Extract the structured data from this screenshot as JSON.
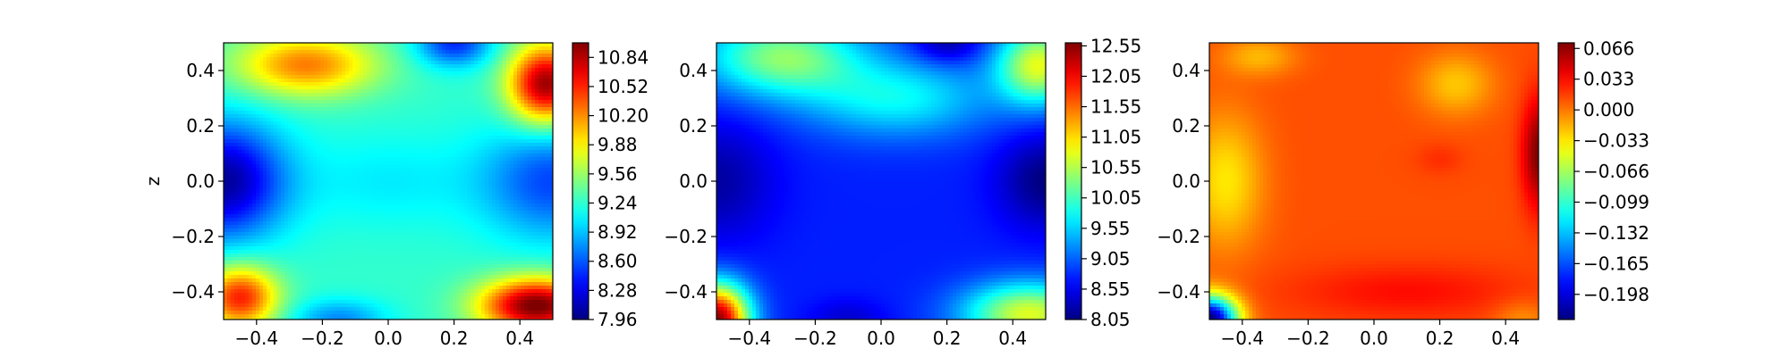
{
  "chart_data": [
    {
      "type": "heatmap",
      "colormap": "jet",
      "xlabel": "",
      "ylabel": "z",
      "xlim": [
        -0.5,
        0.5
      ],
      "ylim": [
        -0.5,
        0.5
      ],
      "xticks": [
        "−0.4",
        "−0.2",
        "0.0",
        "0.2",
        "0.4"
      ],
      "yticks": [
        "−0.4",
        "−0.2",
        "0.0",
        "0.2",
        "0.4"
      ],
      "colorbar": {
        "min": 7.96,
        "max": 11.0,
        "ticks": [
          {
            "value": 7.96,
            "label": "7.96"
          },
          {
            "value": 8.28,
            "label": "8.28"
          },
          {
            "value": 8.6,
            "label": "8.60"
          },
          {
            "value": 8.92,
            "label": "8.92"
          },
          {
            "value": 9.24,
            "label": "9.24"
          },
          {
            "value": 9.56,
            "label": "9.56"
          },
          {
            "value": 9.88,
            "label": "9.88"
          },
          {
            "value": 10.2,
            "label": "10.20"
          },
          {
            "value": 10.52,
            "label": "10.52"
          },
          {
            "value": 10.84,
            "label": "10.84"
          }
        ]
      },
      "base": 9.25,
      "features": [
        {
          "x": -0.5,
          "y": 0.0,
          "amp": -1.2,
          "sx": 0.13,
          "sy": 0.15
        },
        {
          "x": 0.5,
          "y": 0.0,
          "amp": -0.7,
          "sx": 0.15,
          "sy": 0.15
        },
        {
          "x": -0.25,
          "y": 0.42,
          "amp": 1.0,
          "sx": 0.15,
          "sy": 0.08
        },
        {
          "x": 0.48,
          "y": 0.35,
          "amp": 1.7,
          "sx": 0.08,
          "sy": 0.1
        },
        {
          "x": 0.2,
          "y": 0.5,
          "amp": -0.8,
          "sx": 0.08,
          "sy": 0.06
        },
        {
          "x": -0.45,
          "y": -0.42,
          "amp": 1.3,
          "sx": 0.08,
          "sy": 0.08
        },
        {
          "x": 0.45,
          "y": -0.45,
          "amp": 1.8,
          "sx": 0.12,
          "sy": 0.07
        },
        {
          "x": -0.15,
          "y": -0.5,
          "amp": -0.5,
          "sx": 0.1,
          "sy": 0.05
        },
        {
          "x": 0.0,
          "y": 0.0,
          "amp": -0.2,
          "sx": 0.2,
          "sy": 0.12
        }
      ]
    },
    {
      "type": "heatmap",
      "colormap": "jet",
      "xlabel": "",
      "ylabel": "",
      "xlim": [
        -0.5,
        0.5
      ],
      "ylim": [
        -0.5,
        0.5
      ],
      "xticks": [
        "−0.4",
        "−0.2",
        "0.0",
        "0.2",
        "0.4"
      ],
      "yticks": [
        "−0.4",
        "−0.2",
        "0.0",
        "0.2",
        "0.4"
      ],
      "colorbar": {
        "min": 8.05,
        "max": 12.6,
        "ticks": [
          {
            "value": 8.05,
            "label": "8.05"
          },
          {
            "value": 8.55,
            "label": "8.55"
          },
          {
            "value": 9.05,
            "label": "9.05"
          },
          {
            "value": 9.55,
            "label": "9.55"
          },
          {
            "value": 10.05,
            "label": "10.05"
          },
          {
            "value": 10.55,
            "label": "10.55"
          },
          {
            "value": 11.05,
            "label": "11.05"
          },
          {
            "value": 11.55,
            "label": "11.55"
          },
          {
            "value": 12.05,
            "label": "12.05"
          },
          {
            "value": 12.55,
            "label": "12.55"
          }
        ]
      },
      "base": 8.75,
      "features": [
        {
          "x": -0.5,
          "y": 0.0,
          "amp": -0.55,
          "sx": 0.12,
          "sy": 0.15
        },
        {
          "x": 0.5,
          "y": 0.0,
          "amp": -0.7,
          "sx": 0.1,
          "sy": 0.12
        },
        {
          "x": -0.3,
          "y": 0.45,
          "amp": 1.6,
          "sx": 0.17,
          "sy": 0.1
        },
        {
          "x": 0.48,
          "y": 0.42,
          "amp": 2.0,
          "sx": 0.09,
          "sy": 0.1
        },
        {
          "x": 0.2,
          "y": 0.5,
          "amp": -0.6,
          "sx": 0.07,
          "sy": 0.05
        },
        {
          "x": -0.5,
          "y": -0.5,
          "amp": 3.8,
          "sx": 0.07,
          "sy": 0.09
        },
        {
          "x": 0.45,
          "y": -0.48,
          "amp": 2.0,
          "sx": 0.14,
          "sy": 0.08
        },
        {
          "x": -0.1,
          "y": -0.5,
          "amp": -0.35,
          "sx": 0.08,
          "sy": 0.05
        },
        {
          "x": 0.05,
          "y": 0.3,
          "amp": 1.0,
          "sx": 0.2,
          "sy": 0.1
        }
      ]
    },
    {
      "type": "heatmap",
      "colormap": "jet",
      "xlabel": "",
      "ylabel": "",
      "xlim": [
        -0.5,
        0.5
      ],
      "ylim": [
        -0.5,
        0.5
      ],
      "xticks": [
        "−0.4",
        "−0.2",
        "0.0",
        "0.2",
        "0.4"
      ],
      "yticks": [
        "−0.4",
        "−0.2",
        "0.0",
        "0.2",
        "0.4"
      ],
      "colorbar": {
        "min": -0.225,
        "max": 0.072,
        "ticks": [
          {
            "value": -0.198,
            "label": "−0.198"
          },
          {
            "value": -0.165,
            "label": "−0.165"
          },
          {
            "value": -0.132,
            "label": "−0.132"
          },
          {
            "value": -0.099,
            "label": "−0.099"
          },
          {
            "value": -0.066,
            "label": "−0.066"
          },
          {
            "value": -0.033,
            "label": "−0.033"
          },
          {
            "value": 0.0,
            "label": "0.000"
          },
          {
            "value": 0.033,
            "label": "0.033"
          },
          {
            "value": 0.066,
            "label": "0.066"
          }
        ]
      },
      "base": 0.012,
      "features": [
        {
          "x": -0.5,
          "y": -0.5,
          "amp": -0.24,
          "sx": 0.06,
          "sy": 0.06
        },
        {
          "x": -0.45,
          "y": 0.0,
          "amp": -0.045,
          "sx": 0.08,
          "sy": 0.17
        },
        {
          "x": 0.25,
          "y": 0.35,
          "amp": -0.035,
          "sx": 0.08,
          "sy": 0.08
        },
        {
          "x": -0.35,
          "y": 0.45,
          "amp": -0.03,
          "sx": 0.08,
          "sy": 0.05
        },
        {
          "x": 0.5,
          "y": 0.1,
          "amp": 0.06,
          "sx": 0.035,
          "sy": 0.14
        },
        {
          "x": 0.1,
          "y": -0.4,
          "amp": 0.02,
          "sx": 0.25,
          "sy": 0.07
        },
        {
          "x": 0.2,
          "y": 0.08,
          "amp": 0.01,
          "sx": 0.05,
          "sy": 0.04
        },
        {
          "x": 0.45,
          "y": -0.5,
          "amp": -0.02,
          "sx": 0.06,
          "sy": 0.05
        }
      ]
    }
  ]
}
